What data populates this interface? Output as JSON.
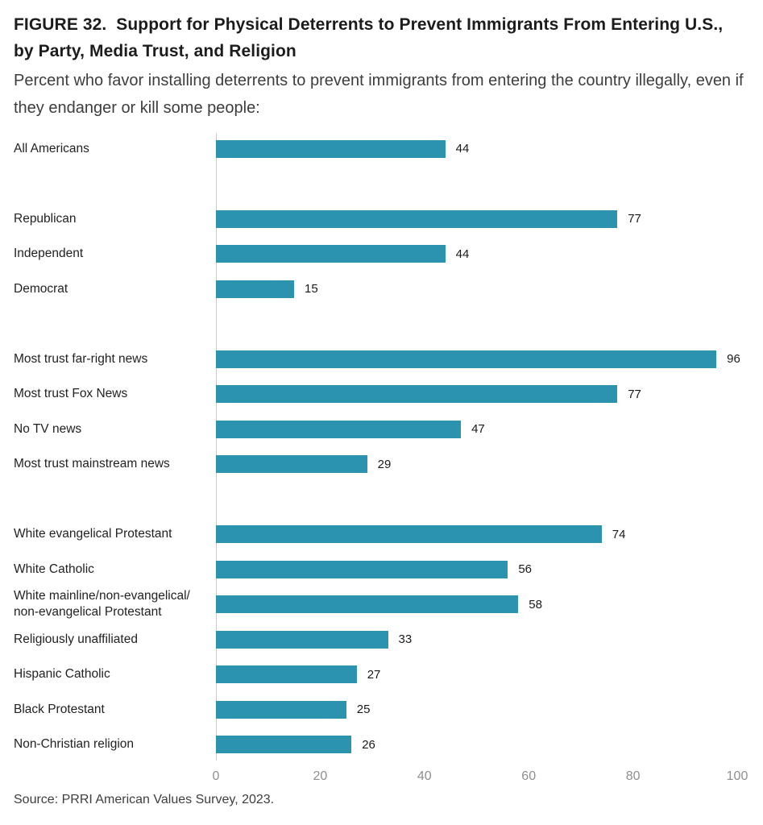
{
  "header": {
    "figure_label": "FIGURE 32.",
    "title": "Support for Physical Deterrents to Prevent Immigrants From Entering U.S., by Party, Media Trust, and Religion",
    "subtitle": "Percent who favor installing deterrents to prevent immigrants from entering the country illegally, even if they endanger or kill some people:"
  },
  "chart_data": {
    "type": "bar",
    "orientation": "horizontal",
    "bar_color": "#2b93ae",
    "axis_line_color": "#cccccc",
    "xlim": [
      0,
      100
    ],
    "x_ticks": [
      "0",
      "20",
      "40",
      "60",
      "80",
      "100"
    ],
    "x_tick_values": [
      0,
      20,
      40,
      60,
      80,
      100
    ],
    "legend": "none",
    "grid": "off",
    "groups": [
      {
        "name": "overall",
        "rows": [
          {
            "label": "All Americans",
            "value": 44
          }
        ]
      },
      {
        "name": "party",
        "rows": [
          {
            "label": "Republican",
            "value": 77
          },
          {
            "label": "Independent",
            "value": 44
          },
          {
            "label": "Democrat",
            "value": 15
          }
        ]
      },
      {
        "name": "media-trust",
        "rows": [
          {
            "label": "Most trust far-right news",
            "value": 96
          },
          {
            "label": "Most trust Fox News",
            "value": 77
          },
          {
            "label": "No TV news",
            "value": 47
          },
          {
            "label": "Most trust mainstream news",
            "value": 29
          }
        ]
      },
      {
        "name": "religion",
        "rows": [
          {
            "label": "White evangelical Protestant",
            "value": 74
          },
          {
            "label": "White Catholic",
            "value": 56
          },
          {
            "label": "White mainline/non-evangelical/ non-evangelical Protestant",
            "value": 58
          },
          {
            "label": "Religiously unaffiliated",
            "value": 33
          },
          {
            "label": "Hispanic Catholic",
            "value": 27
          },
          {
            "label": "Black Protestant",
            "value": 25
          },
          {
            "label": "Non-Christian religion",
            "value": 26
          }
        ]
      }
    ]
  },
  "footer": {
    "source": "Source: PRRI American Values Survey, 2023."
  }
}
